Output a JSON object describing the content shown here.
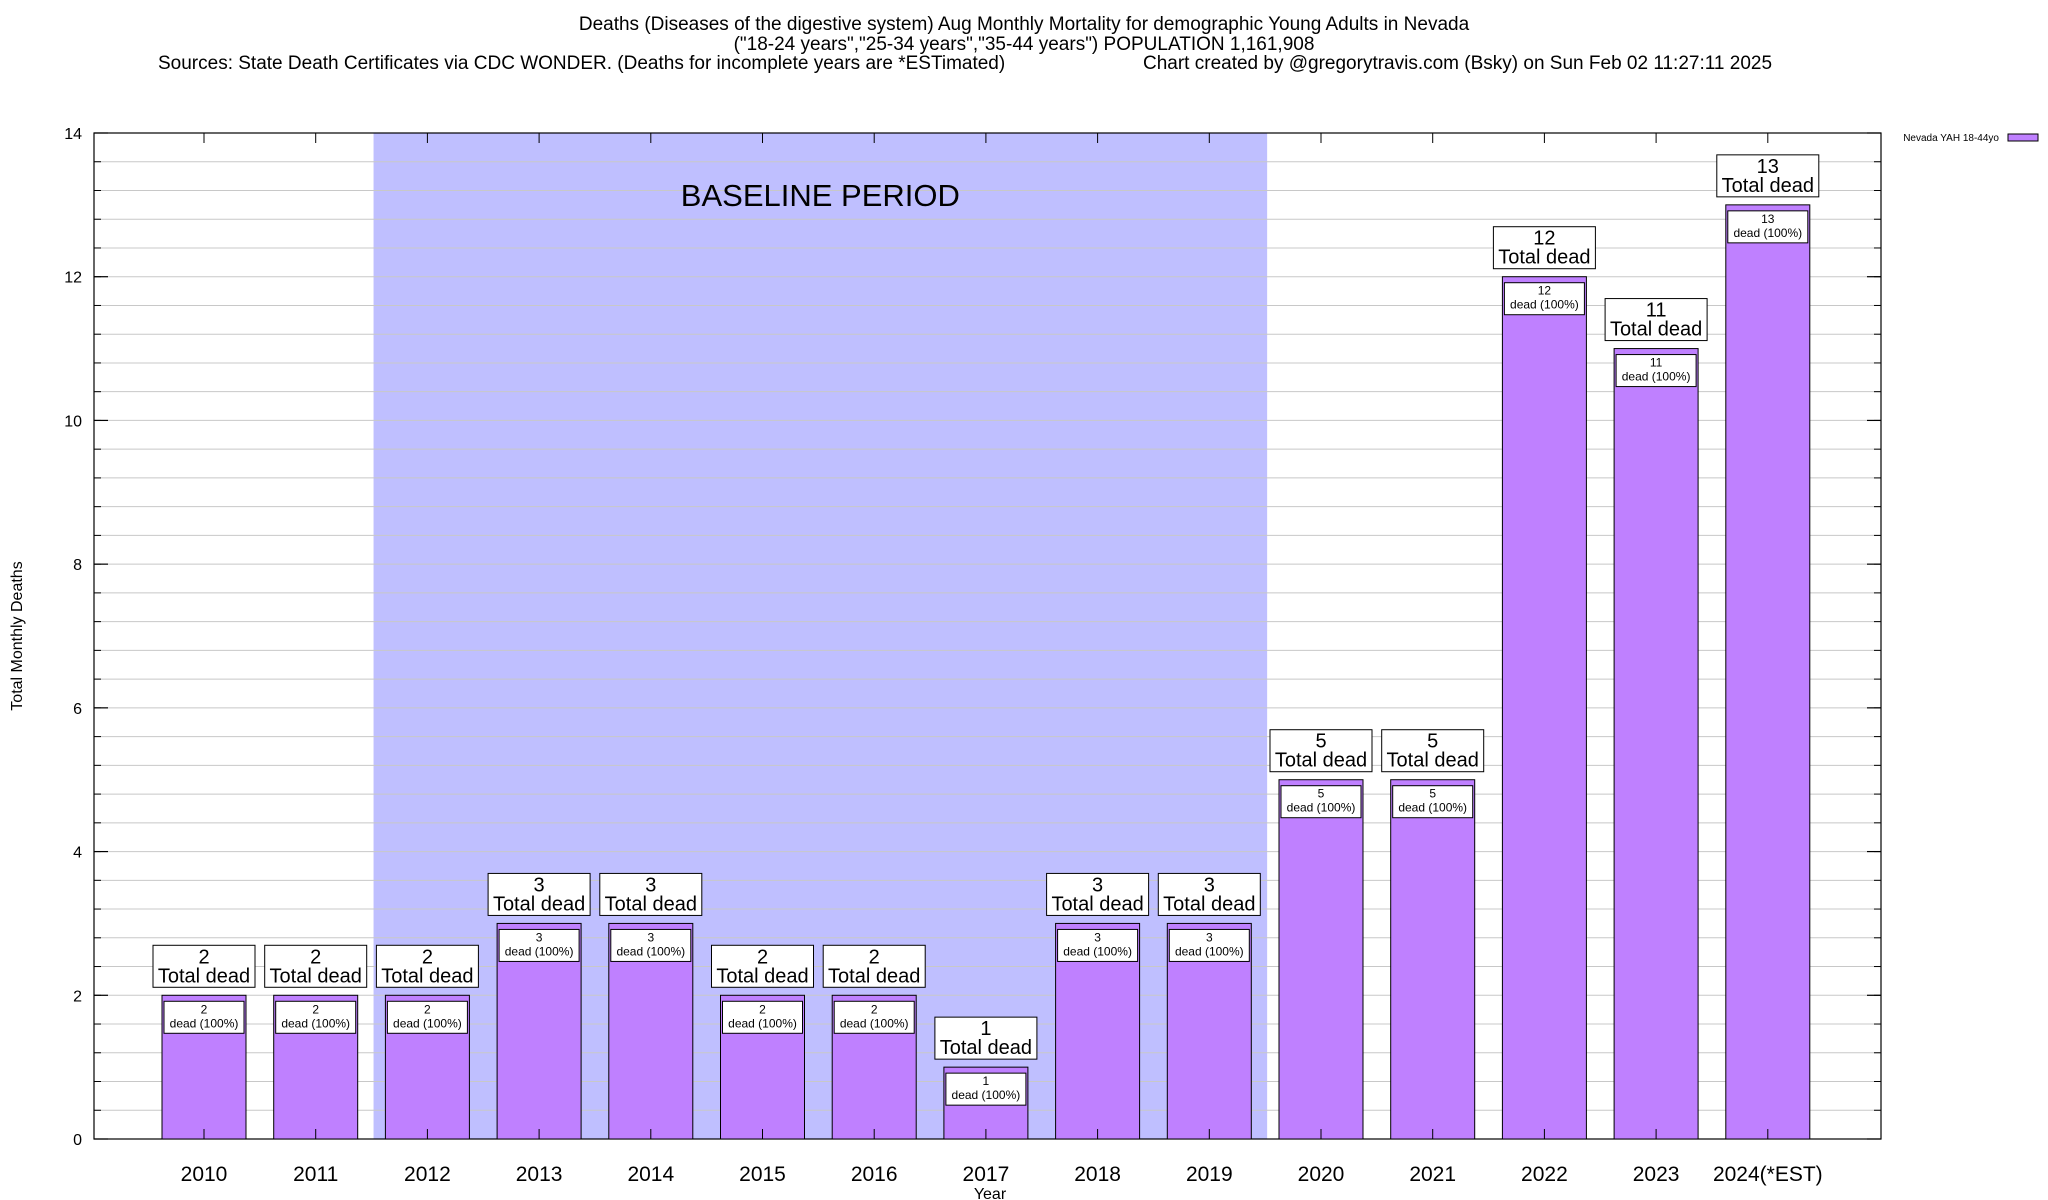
{
  "title": {
    "line1": "Deaths (Diseases of the digestive system) Aug Monthly Mortality for demographic Young Adults in Nevada",
    "line2": "(\"18-24 years\",\"25-34 years\",\"35-44 years\") POPULATION 1,161,908",
    "sources": "Sources: State Death Certificates via CDC WONDER. (Deaths for incomplete years are *ESTimated)",
    "credit": "Chart created by @gregorytravis.com (Bsky) on Sun Feb 02 11:27:11 2025"
  },
  "colors": {
    "bar": "#bf80ff",
    "baseline_band": "#bfbfff",
    "grid": "#c8c8c8"
  },
  "chart_data": {
    "type": "bar",
    "xlabel": "Year",
    "ylabel": "Total Monthly Deaths",
    "ylim": [
      0,
      14
    ],
    "yticks": [
      0,
      2,
      4,
      6,
      8,
      10,
      12,
      14
    ],
    "grid": true,
    "legend": {
      "position": "top-right",
      "label": "Nevada YAH 18-44yo"
    },
    "categories": [
      "2010",
      "2011",
      "2012",
      "2013",
      "2014",
      "2015",
      "2016",
      "2017",
      "2018",
      "2019",
      "2020",
      "2021",
      "2022",
      "2023",
      "2024(*EST)"
    ],
    "series": [
      {
        "name": "Nevada YAH 18-44yo",
        "values": [
          2,
          2,
          2,
          3,
          3,
          2,
          2,
          1,
          3,
          3,
          5,
          5,
          12,
          11,
          13
        ]
      }
    ],
    "total_label_suffix": "Total dead",
    "inner_label_suffix": "dead (100%)",
    "annotations": [
      {
        "text": "BASELINE PERIOD",
        "from_category": "2012",
        "to_category": "2019"
      }
    ]
  }
}
